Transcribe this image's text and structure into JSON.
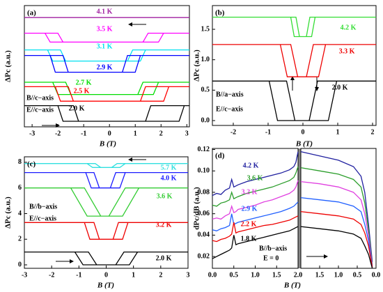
{
  "chart_data": [
    {
      "type": "line",
      "label": "(a)",
      "xlabel": "B (T)",
      "ylabel": "ΔPc (a.u.)",
      "xlim": [
        -3.3,
        3.1
      ],
      "ylim": [
        0,
        10.875
      ],
      "xticks": [
        -3,
        -2,
        -1,
        0,
        1,
        2,
        3
      ],
      "annotations": [
        "B//c−axis",
        "E//c−axis"
      ],
      "series": [
        {
          "name": "4.1 K",
          "color": "#a020a0",
          "x": [
            -3.3,
            3.1
          ],
          "values": [
            9.8,
            9.8
          ]
        },
        {
          "name": "3.5 K",
          "color": "#ff00ff",
          "x": [
            -3.3,
            -2.5,
            -2.3,
            1.9,
            2.1,
            3.1,
            1.5,
            1.3,
            -1.8,
            -2.0,
            -3.3
          ],
          "values": [
            8.4,
            8.4,
            7.6,
            7.6,
            8.4,
            8.4,
            8.4,
            7.6,
            7.6,
            8.4,
            8.4
          ]
        },
        {
          "name": "3.1 K",
          "color": "#00e0f0",
          "x": [
            -3.3,
            -2.4,
            -2.2,
            1.2,
            1.4,
            3.1,
            0.9,
            0.7,
            -1.7,
            -1.9,
            -3.3
          ],
          "values": [
            6.9,
            6.9,
            5.9,
            5.9,
            6.9,
            6.9,
            6.9,
            5.9,
            5.9,
            6.9,
            6.9
          ]
        },
        {
          "name": "2.9 K",
          "color": "#0000ff",
          "x": [
            -3.3,
            -2.3,
            -2.1,
            1.0,
            1.2,
            3.1,
            0.7,
            0.5,
            -1.6,
            -1.8,
            -3.3
          ],
          "values": [
            6.4,
            6.4,
            4.9,
            4.9,
            6.4,
            6.4,
            6.4,
            4.9,
            4.9,
            6.4,
            6.4
          ]
        },
        {
          "name": "2.7 K",
          "color": "#00dd00",
          "x": [
            -3.3,
            -2.2,
            -2.0,
            1.7,
            1.9,
            3.1,
            1.3,
            1.1,
            -1.5,
            -1.7,
            -3.3
          ],
          "values": [
            4.0,
            4.0,
            2.9,
            2.9,
            4.0,
            4.0,
            4.0,
            2.9,
            2.9,
            4.0,
            4.0
          ]
        },
        {
          "name": "2.5 K",
          "color": "#ff0000",
          "x": [
            -3.3,
            -2.1,
            -1.9,
            2.1,
            2.3,
            3.1,
            1.4,
            1.2,
            -1.4,
            -1.6,
            -3.3
          ],
          "values": [
            3.6,
            3.6,
            2.3,
            2.3,
            3.6,
            3.6,
            3.6,
            2.3,
            2.3,
            3.6,
            3.6
          ]
        },
        {
          "name": "2.0 K",
          "color": "#000000",
          "x": [
            -3.3,
            -2.0,
            -1.8,
            2.7,
            2.9,
            3.1,
            1.6,
            1.4,
            -1.2,
            -1.4,
            -3.3
          ],
          "values": [
            1.9,
            1.9,
            0.5,
            0.5,
            1.9,
            1.9,
            1.9,
            0.5,
            0.5,
            1.9,
            1.9
          ]
        }
      ]
    },
    {
      "type": "line",
      "label": "(b)",
      "xlabel": "B (T)",
      "ylabel": "ΔPc (a.u.)",
      "xlim": [
        -2.6,
        2.1
      ],
      "ylim": [
        -0.08,
        1.89
      ],
      "xticks": [
        -2,
        -1,
        0,
        1,
        2
      ],
      "yticks": [
        {
          "value": 0,
          "label": "0.0"
        },
        0.5,
        {
          "value": 1,
          "label": "1.0"
        },
        1.5
      ],
      "annotations": [
        "B//a−axis",
        "E//c−axis"
      ],
      "series": [
        {
          "name": "4.2 K",
          "color": "#33dd33",
          "x": [
            -2.6,
            -0.35,
            -0.25,
            0.25,
            0.35,
            2.1,
            0.2,
            0.1,
            -0.1,
            -0.2,
            -2.6
          ],
          "values": [
            1.7,
            1.7,
            1.38,
            1.38,
            1.7,
            1.7,
            1.7,
            1.38,
            1.38,
            1.7,
            1.7
          ]
        },
        {
          "name": "3.3 K",
          "color": "#ee0000",
          "x": [
            -2.6,
            -0.65,
            -0.45,
            0.45,
            0.65,
            2.1,
            0.3,
            0.1,
            -0.15,
            -0.35,
            -2.6
          ],
          "values": [
            1.25,
            1.25,
            0.72,
            0.72,
            1.25,
            1.25,
            1.25,
            0.72,
            0.72,
            1.25,
            1.25
          ]
        },
        {
          "name": "2.0 K",
          "color": "#000000",
          "x": [
            -2.6,
            -0.97,
            -0.73,
            0.73,
            0.97,
            2.1,
            0.42,
            0.18,
            -0.23,
            -0.47,
            -2.6
          ],
          "values": [
            0.65,
            0.65,
            0,
            0,
            0.65,
            0.65,
            0.65,
            0,
            0,
            0.65,
            0.65
          ]
        }
      ]
    },
    {
      "type": "line",
      "label": "(c)",
      "xlabel": "B (T)",
      "ylabel": "ΔPc (a.u.)",
      "xlim": [
        -3,
        3
      ],
      "ylim": [
        -0.27,
        8.43
      ],
      "xticks": [
        -3,
        -2,
        -1,
        0,
        1,
        2,
        3
      ],
      "yticks": [
        0,
        2,
        4,
        6,
        8
      ],
      "annotations": [
        "B//b−axis",
        "E//c−axis"
      ],
      "series": [
        {
          "name": "5.7 K",
          "color": "#30e0e0",
          "x": [
            -3,
            -0.7,
            -0.5,
            0.5,
            0.7,
            3,
            0.4,
            0.2,
            -0.2,
            -0.4,
            -3
          ],
          "values": [
            7.9,
            7.9,
            7.6,
            7.6,
            7.9,
            7.9,
            7.9,
            7.6,
            7.6,
            7.9,
            7.9
          ]
        },
        {
          "name": "4.0 K",
          "color": "#1a1aff",
          "x": [
            -3,
            -0.75,
            -0.55,
            0.5,
            0.7,
            3,
            0.35,
            0.15,
            -0.25,
            -0.45,
            -3
          ],
          "values": [
            7.2,
            7.2,
            6.0,
            6.0,
            7.2,
            7.2,
            7.2,
            6.0,
            6.0,
            7.2,
            7.2
          ]
        },
        {
          "name": "3.6 K",
          "color": "#33cc33",
          "x": [
            -3,
            -1.3,
            -0.7,
            0.6,
            1.2,
            3,
            0.7,
            0.1,
            -0.2,
            -0.8,
            -3
          ],
          "values": [
            6.0,
            6.0,
            3.8,
            3.8,
            6.0,
            6.0,
            6.0,
            3.8,
            3.8,
            6.0,
            6.0
          ]
        },
        {
          "name": "3.2 K",
          "color": "#ee0000",
          "x": [
            -3,
            -0.8,
            -0.6,
            0.6,
            0.8,
            3,
            0.45,
            0.25,
            -0.25,
            -0.45,
            -3
          ],
          "values": [
            3.3,
            3.3,
            2.0,
            2.0,
            3.3,
            3.3,
            3.3,
            2.0,
            2.0,
            3.3,
            3.3
          ]
        },
        {
          "name": "2.0 K",
          "color": "#000000",
          "x": [
            -3,
            -1.15,
            -0.85,
            0.85,
            1.15,
            3,
            0.65,
            0.35,
            -0.35,
            -0.65,
            -3
          ],
          "values": [
            1.0,
            1.0,
            0,
            0,
            1.0,
            1.0,
            1.0,
            0,
            0,
            1.0,
            1.0
          ]
        }
      ]
    },
    {
      "type": "line",
      "label": "(d)",
      "xlabel": "B (T)",
      "ylabel": "dPc/dB (a.u.)",
      "xlim": [
        0,
        2
      ],
      "ylim": [
        0.009,
        0.121
      ],
      "xticks": [
        {
          "value": 0,
          "label": "0.0"
        },
        0.5,
        {
          "value": 1,
          "label": "1.0"
        },
        1.5,
        {
          "value": 2,
          "label": "2.0"
        }
      ],
      "yticks": [
        0.02,
        0.04,
        0.06,
        0.08,
        {
          "value": 0.1,
          "label": "0.10"
        },
        0.12
      ],
      "annotations": [
        "B//b−axis",
        "E = 0"
      ],
      "series": [
        {
          "name": "4.2 K",
          "color": "#1f1f9f",
          "x": [
            0,
            0.1,
            0.2,
            0.3,
            0.4,
            0.45,
            0.5,
            0.55,
            0.6,
            0.8,
            1.0,
            1.2,
            1.4,
            1.6,
            1.8,
            1.9,
            1.95,
            2.0
          ],
          "values": [
            0.077,
            0.079,
            0.078,
            0.082,
            0.084,
            0.092,
            0.085,
            0.086,
            0.087,
            0.09,
            0.092,
            0.094,
            0.096,
            0.098,
            0.101,
            0.104,
            0.108,
            0.118
          ]
        },
        {
          "name": "3.6 K",
          "color": "#2a9d2a",
          "x": [
            0,
            0.1,
            0.2,
            0.3,
            0.4,
            0.45,
            0.5,
            0.55,
            0.6,
            0.8,
            1.0,
            1.2,
            1.4,
            1.6,
            1.8,
            1.9,
            1.95,
            2.0
          ],
          "values": [
            0.068,
            0.067,
            0.07,
            0.071,
            0.073,
            0.08,
            0.074,
            0.075,
            0.076,
            0.079,
            0.081,
            0.083,
            0.085,
            0.088,
            0.091,
            0.094,
            0.098,
            0.104
          ]
        },
        {
          "name": "3.2 K",
          "color": "#e040e0",
          "x": [
            0,
            0.1,
            0.2,
            0.3,
            0.4,
            0.45,
            0.5,
            0.55,
            0.6,
            0.8,
            1.0,
            1.2,
            1.4,
            1.6,
            1.8,
            1.9,
            1.95,
            2.0
          ],
          "values": [
            0.055,
            0.056,
            0.055,
            0.058,
            0.06,
            0.067,
            0.061,
            0.062,
            0.064,
            0.066,
            0.068,
            0.071,
            0.073,
            0.076,
            0.079,
            0.082,
            0.085,
            0.091
          ]
        },
        {
          "name": "2.9 K",
          "color": "#1f5fff",
          "x": [
            0,
            0.1,
            0.2,
            0.3,
            0.4,
            0.45,
            0.5,
            0.55,
            0.6,
            0.8,
            1.0,
            1.2,
            1.4,
            1.6,
            1.8,
            1.9,
            1.95,
            2.0
          ],
          "values": [
            0.045,
            0.044,
            0.046,
            0.047,
            0.049,
            0.06,
            0.05,
            0.051,
            0.052,
            0.054,
            0.056,
            0.058,
            0.06,
            0.062,
            0.065,
            0.067,
            0.069,
            0.071
          ]
        },
        {
          "name": "2.2 K",
          "color": "#ee0000",
          "x": [
            0,
            0.1,
            0.2,
            0.3,
            0.4,
            0.45,
            0.5,
            0.55,
            0.6,
            0.8,
            1.0,
            1.2,
            1.4,
            1.6,
            1.8,
            1.9,
            1.95,
            2.0
          ],
          "values": [
            0.035,
            0.034,
            0.036,
            0.037,
            0.039,
            0.041,
            0.052,
            0.042,
            0.043,
            0.045,
            0.047,
            0.049,
            0.05,
            0.052,
            0.054,
            0.056,
            0.057,
            0.058
          ]
        },
        {
          "name": "1.8 K",
          "color": "#000000",
          "x": [
            0,
            0.1,
            0.2,
            0.3,
            0.4,
            0.45,
            0.5,
            0.55,
            0.6,
            0.8,
            1.0,
            1.2,
            1.4,
            1.6,
            1.8,
            1.9,
            1.95,
            2.0
          ],
          "values": [
            0.018,
            0.02,
            0.022,
            0.024,
            0.026,
            0.028,
            0.04,
            0.031,
            0.032,
            0.034,
            0.036,
            0.038,
            0.04,
            0.042,
            0.044,
            0.046,
            0.047,
            0.048
          ]
        }
      ]
    },
    {
      "type": "line",
      "xlim": [
        2,
        0
      ],
      "ylim": [
        0.009,
        0.121
      ],
      "xticks": [
        1.5,
        {
          "value": 1,
          "label": "1.0"
        },
        0.5,
        {
          "value": 0,
          "label": "0.0"
        }
      ],
      "series": [
        {
          "color": "#1f1f9f",
          "x": [
            2.0,
            1.5,
            1.0,
            0.6,
            0.4,
            0.3,
            0.2,
            0.1
          ],
          "values": [
            0.118,
            0.114,
            0.11,
            0.104,
            0.095,
            0.08,
            0.05,
            0.015
          ]
        },
        {
          "color": "#2a9d2a",
          "x": [
            2.0,
            1.5,
            1.0,
            0.6,
            0.4,
            0.3,
            0.2,
            0.1
          ],
          "values": [
            0.103,
            0.1,
            0.097,
            0.092,
            0.085,
            0.07,
            0.045,
            0.012
          ]
        },
        {
          "color": "#e040e0",
          "x": [
            2.0,
            1.5,
            1.0,
            0.6,
            0.4,
            0.3,
            0.2,
            0.1
          ],
          "values": [
            0.09,
            0.088,
            0.085,
            0.08,
            0.073,
            0.06,
            0.04,
            0.011
          ]
        },
        {
          "color": "#1f5fff",
          "x": [
            2.0,
            1.5,
            1.0,
            0.6,
            0.4,
            0.3,
            0.2,
            0.1
          ],
          "values": [
            0.075,
            0.073,
            0.071,
            0.067,
            0.062,
            0.05,
            0.035,
            0.01
          ]
        },
        {
          "color": "#ee0000",
          "x": [
            2.0,
            1.5,
            1.0,
            0.6,
            0.4,
            0.3,
            0.2,
            0.1
          ],
          "values": [
            0.062,
            0.06,
            0.058,
            0.055,
            0.05,
            0.042,
            0.03,
            0.01
          ]
        },
        {
          "color": "#000000",
          "x": [
            2.0,
            1.5,
            1.0,
            0.6,
            0.4,
            0.3,
            0.2,
            0.1
          ],
          "values": [
            0.048,
            0.046,
            0.044,
            0.041,
            0.037,
            0.03,
            0.022,
            0.009
          ]
        }
      ]
    }
  ]
}
